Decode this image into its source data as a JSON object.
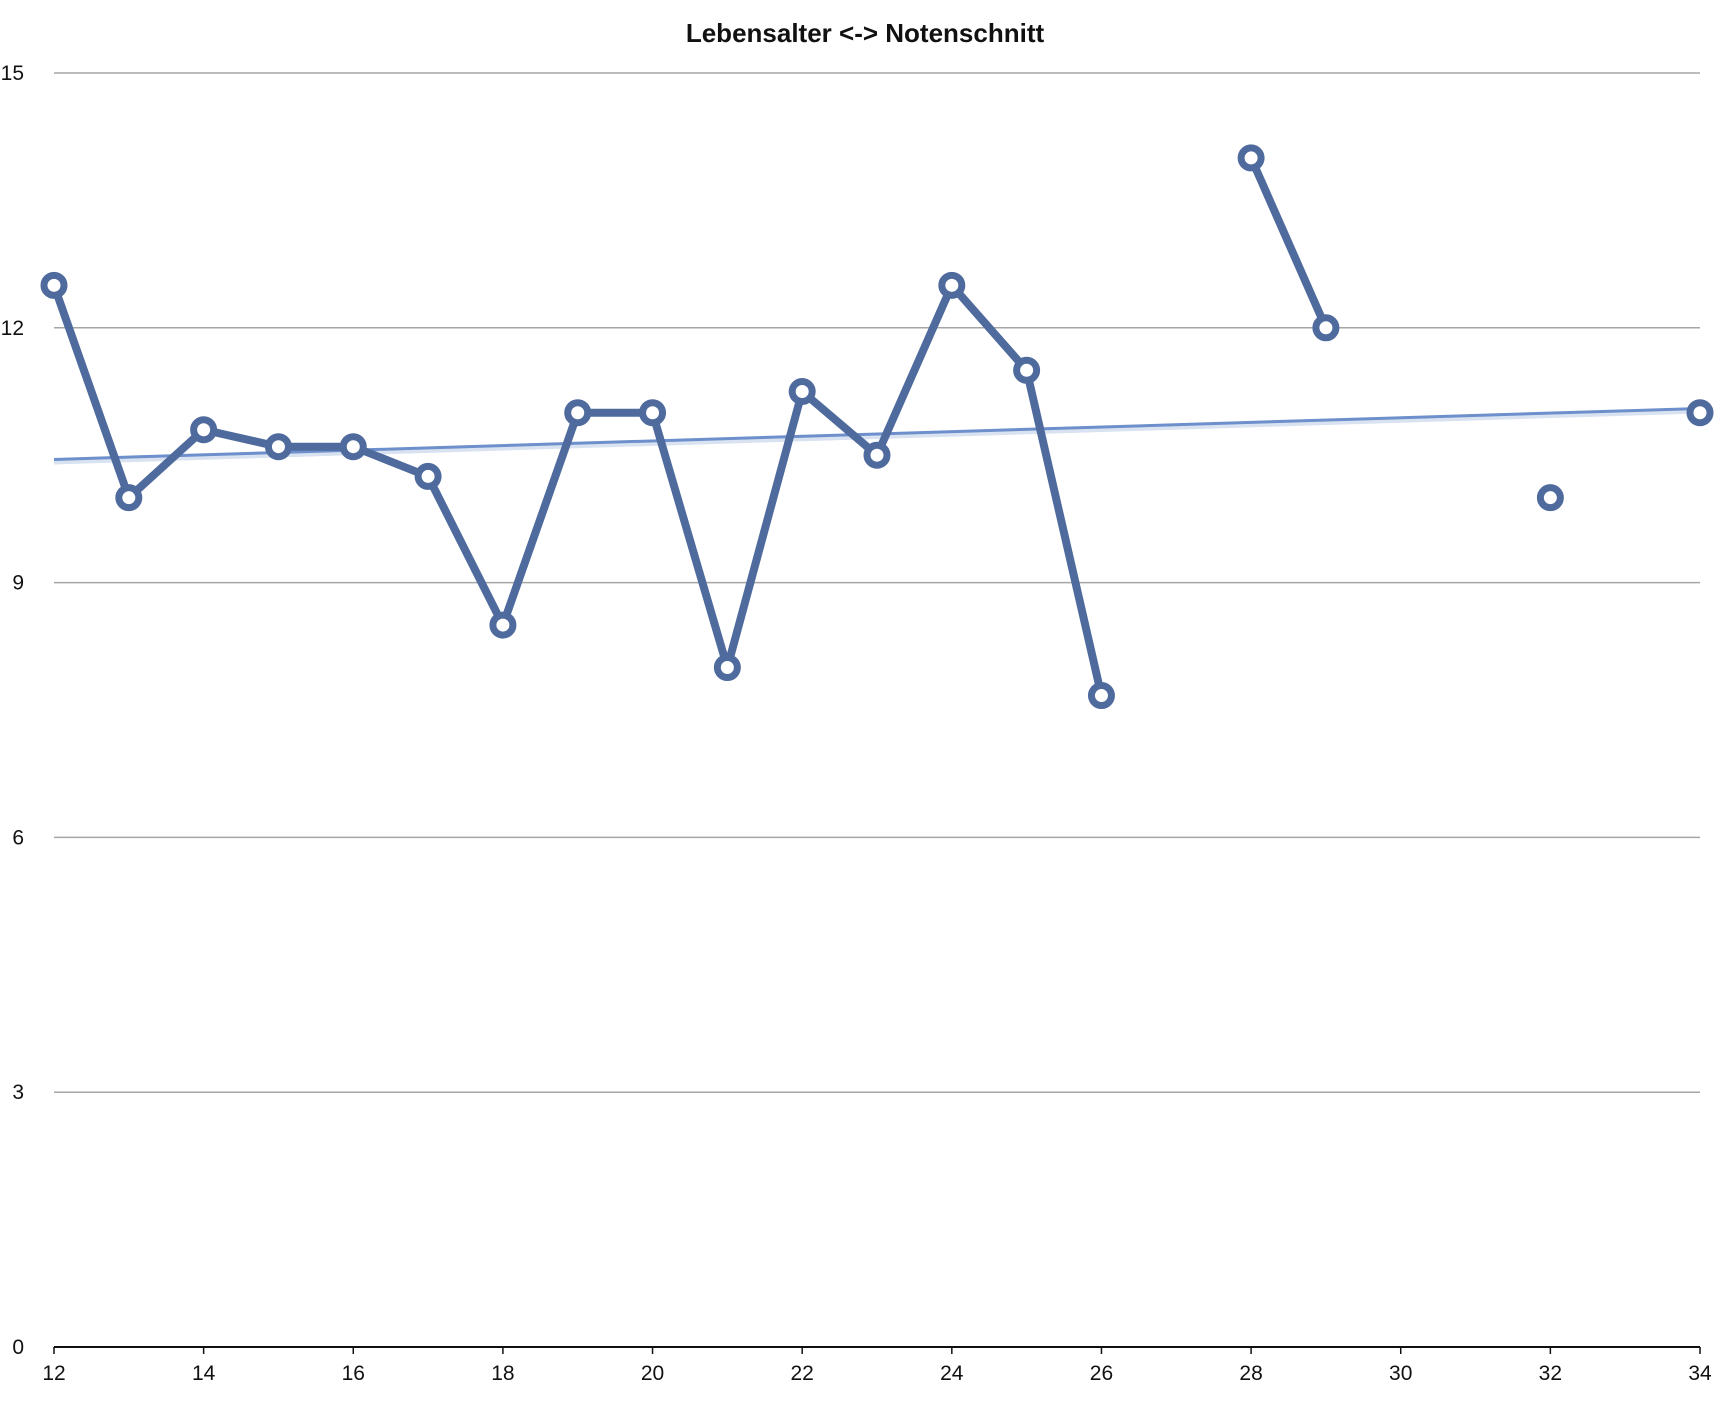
{
  "chart_data": {
    "type": "line",
    "title": "Lebensalter <-> Notenschnitt",
    "xlabel": "",
    "ylabel": "",
    "xlim": [
      12,
      34
    ],
    "ylim": [
      0,
      15
    ],
    "x_ticks": [
      12,
      14,
      16,
      18,
      20,
      22,
      24,
      26,
      28,
      30,
      32,
      34
    ],
    "y_ticks": [
      0,
      3,
      6,
      9,
      12,
      15
    ],
    "grid": true,
    "legend": "none",
    "series": [
      {
        "points": [
          [
            12,
            12.5
          ],
          [
            13,
            10.0
          ],
          [
            14,
            10.8
          ],
          [
            15,
            10.6
          ],
          [
            16,
            10.6
          ],
          [
            17,
            10.25
          ],
          [
            18,
            8.5
          ],
          [
            19,
            11.0
          ],
          [
            20,
            11.0
          ],
          [
            21,
            8.0
          ],
          [
            22,
            11.25
          ],
          [
            23,
            10.5
          ],
          [
            24,
            12.5
          ],
          [
            25,
            11.5
          ],
          [
            26,
            7.67
          ],
          [
            27,
            null
          ],
          [
            28,
            14.0
          ],
          [
            29,
            12.0
          ],
          [
            30,
            null
          ],
          [
            31,
            null
          ],
          [
            32,
            10.0
          ],
          [
            33,
            null
          ],
          [
            34,
            11.0
          ]
        ],
        "color": "#4f6b9e"
      }
    ],
    "trendline": {
      "type": "linear",
      "start": [
        12,
        10.45
      ],
      "end": [
        34,
        11.05
      ],
      "color": "#6d8fcb"
    }
  }
}
